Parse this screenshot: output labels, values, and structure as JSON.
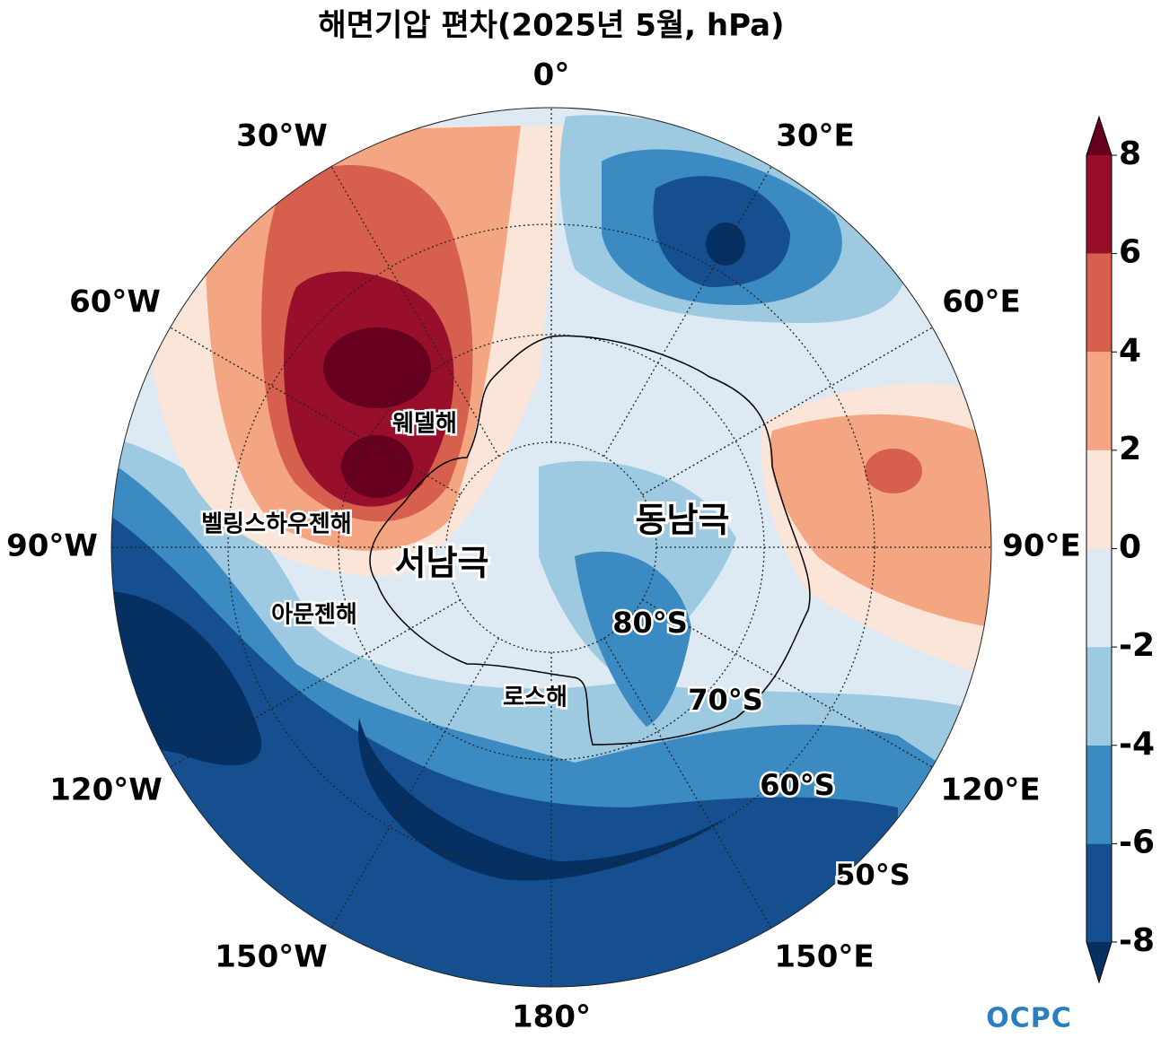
{
  "title": "해면기압 편차(2025년 5월, hPa)",
  "longitude_labels": [
    "0°",
    "30°E",
    "60°E",
    "90°E",
    "120°E",
    "150°E",
    "180°",
    "150°W",
    "120°W",
    "90°W",
    "60°W",
    "30°W"
  ],
  "latitude_labels": [
    "80°S",
    "70°S",
    "60°S",
    "50°S"
  ],
  "region_labels": [
    "웨델해",
    "벨링스하우젠해",
    "아문젠해",
    "로스해",
    "서남극",
    "동남극"
  ],
  "colorbar": {
    "ticks": [
      -8,
      -6,
      -4,
      -2,
      0,
      2,
      4,
      6,
      8
    ],
    "colors": [
      "#164f8f",
      "#3c8ac2",
      "#9dc9e1",
      "#ddeaf3",
      "#fbe4d8",
      "#f4a582",
      "#d6604d",
      "#980f2b"
    ],
    "under_color": "#053061",
    "over_color": "#67001f"
  },
  "logo": "OCPC"
}
